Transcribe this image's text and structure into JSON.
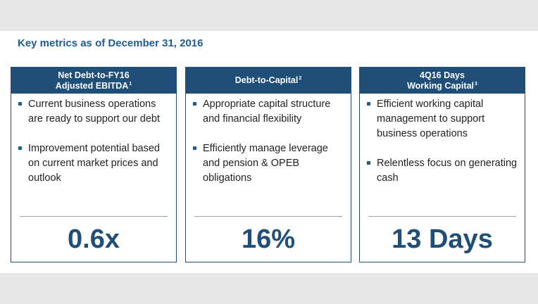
{
  "title": "Key metrics as of December 31, 2016",
  "cards": [
    {
      "header_lines": [
        "Net Debt-to-FY16",
        "Adjusted EBITDA"
      ],
      "footnote": "1",
      "bullets": [
        "Current business operations are ready to support our debt",
        "Improvement potential based on current market prices and outlook"
      ],
      "metric": "0.6x"
    },
    {
      "header_lines": [
        "Debt-to-Capital"
      ],
      "footnote": "2",
      "bullets": [
        "Appropriate capital structure and financial flexibility",
        "Efficiently manage leverage and pension & OPEB obligations"
      ],
      "metric": "16%"
    },
    {
      "header_lines": [
        "4Q16 Days",
        "Working Capital"
      ],
      "footnote": "3",
      "bullets": [
        "Efficient working capital management to support business operations",
        "Relentless focus on generating cash"
      ],
      "metric": "13 Days"
    }
  ],
  "colors": {
    "header_bg": "#1f4e79",
    "title_text": "#1f5b94",
    "metric_text": "#1f4e79",
    "bullet_marker": "#1f5b94"
  }
}
